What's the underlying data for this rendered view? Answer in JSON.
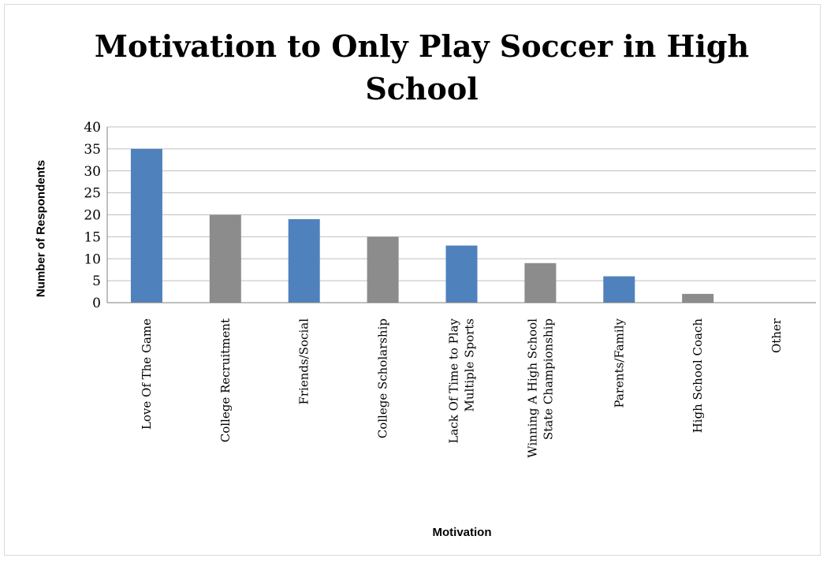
{
  "chart_data": {
    "type": "bar",
    "title": "Motivation to Only Play Soccer in High School",
    "title_lines": [
      "Motivation to Only Play Soccer in High",
      "School"
    ],
    "xlabel": "Motivation",
    "ylabel": "Number of Respondents",
    "ylim": [
      0,
      40
    ],
    "yticks": [
      0,
      5,
      10,
      15,
      20,
      25,
      30,
      35,
      40
    ],
    "grid": true,
    "legend": "none",
    "categories": [
      [
        "Love Of The Game"
      ],
      [
        "College Recruitment"
      ],
      [
        "Friends/Social"
      ],
      [
        "College Scholarship"
      ],
      [
        "Lack Of Time to Play",
        "Multiple Sports"
      ],
      [
        "Winning A High School",
        "State Championship"
      ],
      [
        "Parents/Family"
      ],
      [
        "High School Coach"
      ],
      [
        "Other"
      ]
    ],
    "values": [
      35,
      20,
      19,
      15,
      13,
      9,
      6,
      2,
      0
    ],
    "colors": [
      "#4f81bd",
      "#8c8c8c",
      "#4f81bd",
      "#8c8c8c",
      "#4f81bd",
      "#8c8c8c",
      "#4f81bd",
      "#8c8c8c",
      "#4f81bd"
    ]
  }
}
